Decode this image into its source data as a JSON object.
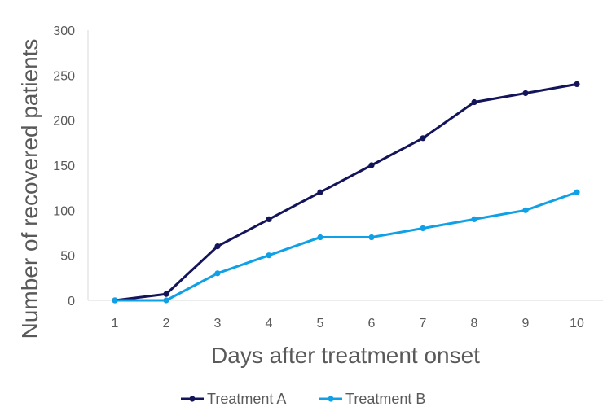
{
  "chart_data": {
    "type": "line",
    "title": "",
    "xlabel": "Days after treatment onset",
    "ylabel": "Number of recovered patients",
    "x": [
      1,
      2,
      3,
      4,
      5,
      6,
      7,
      8,
      9,
      10
    ],
    "ylim": [
      0,
      300
    ],
    "yticks": [
      0,
      50,
      100,
      150,
      200,
      250,
      300
    ],
    "grid": false,
    "legend_position": "bottom",
    "series": [
      {
        "name": "Treatment A",
        "color": "#14145a",
        "values": [
          0,
          7,
          60,
          90,
          120,
          150,
          180,
          220,
          230,
          240
        ]
      },
      {
        "name": "Treatment B",
        "color": "#0fa0e6",
        "values": [
          0,
          0,
          30,
          50,
          70,
          70,
          80,
          90,
          100,
          120
        ]
      }
    ]
  }
}
